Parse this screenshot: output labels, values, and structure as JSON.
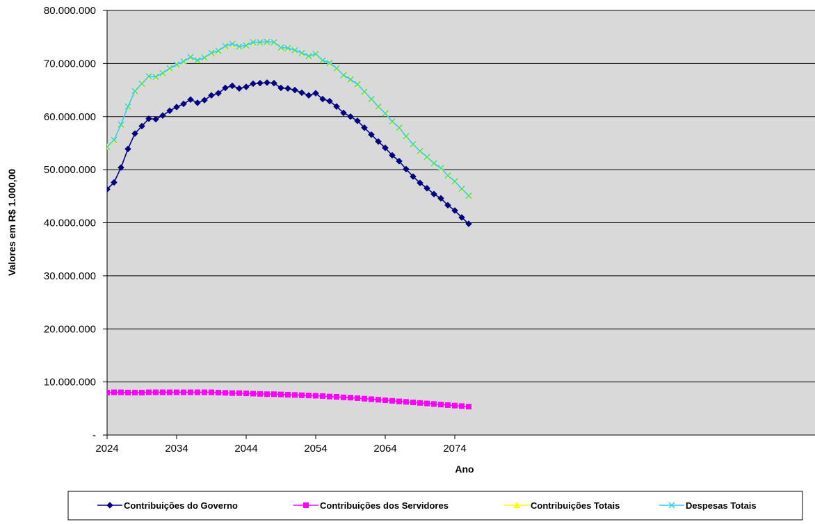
{
  "chart_data": {
    "type": "line",
    "title": "",
    "xlabel": "Ano",
    "ylabel": "Valores em R$ 1.000,00",
    "ylim": [
      0,
      80000000
    ],
    "xlim": [
      2024,
      2076
    ],
    "x_ticks": [
      2024,
      2034,
      2044,
      2054,
      2064,
      2074
    ],
    "y_ticks": [
      0,
      10000000,
      20000000,
      30000000,
      40000000,
      50000000,
      60000000,
      70000000,
      80000000
    ],
    "y_tick_labels": [
      "-",
      "10.000.000",
      "20.000.000",
      "30.000.000",
      "40.000.000",
      "50.000.000",
      "60.000.000",
      "70.000.000",
      "80.000.000"
    ],
    "x_tick_labels": [
      "2024",
      "2034",
      "2044",
      "2054",
      "2064",
      "2074"
    ],
    "grid": "horizontal",
    "plot_background": "#d9d9d9",
    "legend_position": "bottom",
    "x": [
      2024,
      2025,
      2026,
      2027,
      2028,
      2029,
      2030,
      2031,
      2032,
      2033,
      2034,
      2035,
      2036,
      2037,
      2038,
      2039,
      2040,
      2041,
      2042,
      2043,
      2044,
      2045,
      2046,
      2047,
      2048,
      2049,
      2050,
      2051,
      2052,
      2053,
      2054,
      2055,
      2056,
      2057,
      2058,
      2059,
      2060,
      2061,
      2062,
      2063,
      2064,
      2065,
      2066,
      2067,
      2068,
      2069,
      2070,
      2071,
      2072,
      2073,
      2074,
      2075,
      2076
    ],
    "series": [
      {
        "name": "Contribuições do Governo",
        "color": "#000080",
        "marker": "diamond",
        "values": [
          46300000,
          47600000,
          50400000,
          53900000,
          56800000,
          58200000,
          59600000,
          59500000,
          60200000,
          61100000,
          61800000,
          62400000,
          63200000,
          62600000,
          63100000,
          64000000,
          64400000,
          65400000,
          65800000,
          65300000,
          65600000,
          66200000,
          66300000,
          66400000,
          66300000,
          65400000,
          65300000,
          65000000,
          64500000,
          64000000,
          64400000,
          63300000,
          62900000,
          61900000,
          60700000,
          60000000,
          59200000,
          57900000,
          56600000,
          55300000,
          54100000,
          52700000,
          51600000,
          50100000,
          48700000,
          47500000,
          46500000,
          45400000,
          44600000,
          43300000,
          42300000,
          41000000,
          39800000
        ]
      },
      {
        "name": "Contribuições dos Servidores",
        "color": "#ff00ff",
        "marker": "square",
        "values": [
          8000000,
          8050000,
          8050000,
          8000000,
          8000000,
          8000000,
          8050000,
          8050000,
          8050000,
          8050000,
          8050000,
          8050000,
          8050000,
          8050000,
          8050000,
          8050000,
          8000000,
          7950000,
          7900000,
          7900000,
          7850000,
          7800000,
          7750000,
          7700000,
          7700000,
          7650000,
          7600000,
          7550000,
          7500000,
          7450000,
          7400000,
          7350000,
          7250000,
          7200000,
          7100000,
          7050000,
          6950000,
          6850000,
          6750000,
          6650000,
          6550000,
          6450000,
          6350000,
          6250000,
          6150000,
          6050000,
          5950000,
          5850000,
          5750000,
          5650000,
          5550000,
          5450000,
          5350000
        ]
      },
      {
        "name": "Contribuições Totais",
        "color": "#ffff00",
        "marker": "triangle",
        "values": [
          54300000,
          55600000,
          58500000,
          61900000,
          64800000,
          66200000,
          67600000,
          67500000,
          68200000,
          69100000,
          69800000,
          70400000,
          71200000,
          70600000,
          71100000,
          72000000,
          72400000,
          73300000,
          73700000,
          73200000,
          73400000,
          74000000,
          74000000,
          74100000,
          74000000,
          73000000,
          72900000,
          72500000,
          72000000,
          71400000,
          71800000,
          70600000,
          70100000,
          69100000,
          67800000,
          67000000,
          66100000,
          64700000,
          63300000,
          61900000,
          60600000,
          59100000,
          57900000,
          56300000,
          54800000,
          53500000,
          52400000,
          51200000,
          50300000,
          48900000,
          47800000,
          46400000,
          45100000
        ]
      },
      {
        "name": "Despesas Totais",
        "color": "#33ccff",
        "marker": "x",
        "values": [
          54300000,
          55600000,
          58500000,
          61900000,
          64800000,
          66200000,
          67600000,
          67500000,
          68200000,
          69100000,
          69800000,
          70400000,
          71200000,
          70600000,
          71100000,
          72000000,
          72400000,
          73300000,
          73700000,
          73200000,
          73400000,
          74000000,
          74000000,
          74100000,
          74000000,
          73000000,
          72900000,
          72500000,
          72000000,
          71400000,
          71800000,
          70600000,
          70100000,
          69100000,
          67800000,
          67000000,
          66100000,
          64700000,
          63300000,
          61900000,
          60600000,
          59100000,
          57900000,
          56300000,
          54800000,
          53500000,
          52400000,
          51200000,
          50300000,
          48900000,
          47800000,
          46400000,
          45100000
        ]
      }
    ]
  }
}
